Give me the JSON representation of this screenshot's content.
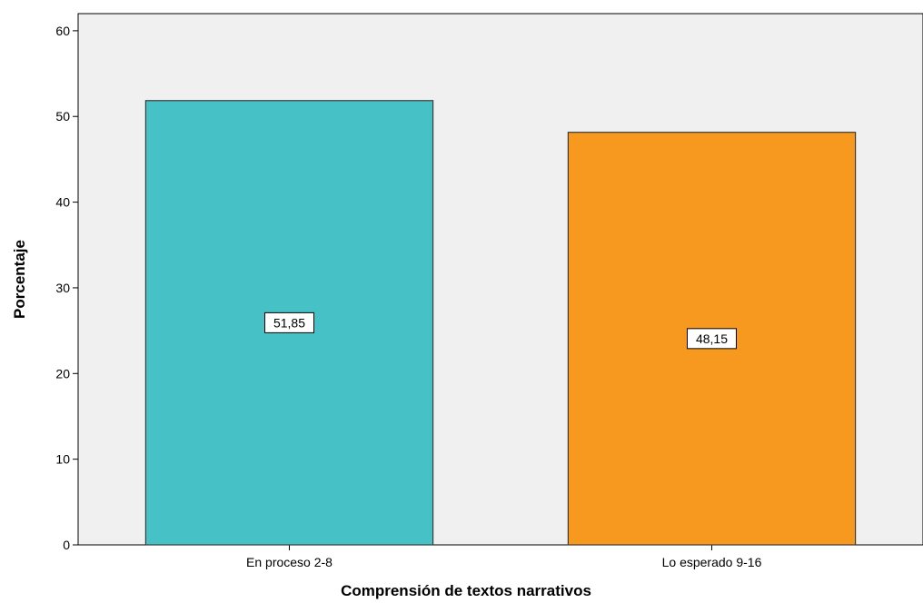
{
  "chart_data": {
    "type": "bar",
    "categories": [
      "En proceso 2-8",
      "Lo esperado  9-16"
    ],
    "values": [
      51.85,
      48.15
    ],
    "data_labels": [
      "51,85",
      "48,15"
    ],
    "bar_colors": [
      "#46C1C5",
      "#F7981F"
    ],
    "xlabel": "Comprensión de textos narrativos",
    "ylabel": "Porcentaje",
    "ylim": [
      0,
      62
    ],
    "yticks": [
      0,
      10,
      20,
      30,
      40,
      50,
      60
    ],
    "grid": false,
    "plot_background": "#F0F0F0"
  }
}
